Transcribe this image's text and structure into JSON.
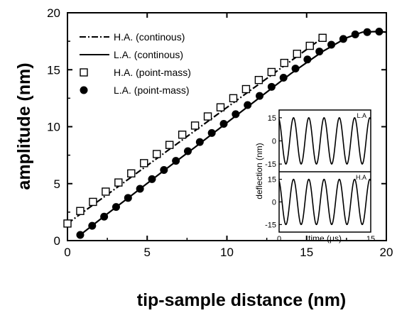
{
  "chart_data": {
    "type": "line",
    "xlabel": "tip-sample distance (nm)",
    "ylabel": "amplitude (nm)",
    "xlim": [
      0,
      20
    ],
    "ylim": [
      0,
      20
    ],
    "xticks": [
      "0",
      "5",
      "10",
      "15",
      "20"
    ],
    "yticks": [
      "0",
      "5",
      "10",
      "15",
      "20"
    ],
    "grid": false,
    "legend_position": "top-left",
    "series": [
      {
        "name": "H.A. (continous)",
        "style": "dash-dot line",
        "x": [
          0,
          16
        ],
        "y": [
          1.5,
          17.8
        ]
      },
      {
        "name": "L.A. (continous)",
        "style": "solid line",
        "x": [
          0.8,
          2.5,
          4,
          6,
          8,
          10,
          12,
          14,
          16,
          17.5,
          18.5,
          19.3,
          20
        ],
        "y": [
          0.5,
          2.35,
          3.95,
          6.1,
          8.2,
          10.35,
          12.5,
          14.65,
          16.6,
          17.8,
          18.3,
          18.35,
          18.3
        ]
      },
      {
        "name": "H.A. (point-mass)",
        "marker": "open-square",
        "x": [
          0,
          0.8,
          1.6,
          2.4,
          3.2,
          4.0,
          4.8,
          5.6,
          6.4,
          7.2,
          8.0,
          8.8,
          9.6,
          10.4,
          11.2,
          12.0,
          12.8,
          13.6,
          14.4,
          15.2,
          16.0
        ],
        "y": [
          1.5,
          2.6,
          3.4,
          4.3,
          5.1,
          5.9,
          6.8,
          7.6,
          8.4,
          9.3,
          10.1,
          10.9,
          11.7,
          12.5,
          13.3,
          14.1,
          14.8,
          15.6,
          16.4,
          17.1,
          17.8
        ]
      },
      {
        "name": "L.A. (point-mass)",
        "marker": "filled-circle",
        "x": [
          0.8,
          1.55,
          2.3,
          3.05,
          3.8,
          4.55,
          5.3,
          6.05,
          6.8,
          7.55,
          8.3,
          9.05,
          9.8,
          10.55,
          11.3,
          12.05,
          12.8,
          13.55,
          14.3,
          15.05,
          15.8,
          16.55,
          17.3,
          18.05,
          18.8,
          19.55
        ],
        "y": [
          0.5,
          1.3,
          2.1,
          2.95,
          3.75,
          4.55,
          5.4,
          6.2,
          7.0,
          7.85,
          8.65,
          9.45,
          10.25,
          11.1,
          11.9,
          12.7,
          13.5,
          14.3,
          15.1,
          15.9,
          16.6,
          17.2,
          17.7,
          18.1,
          18.3,
          18.35
        ]
      }
    ],
    "inset": {
      "xlabel": "time (μs)",
      "ylabel": "deflection (nm)",
      "xlim": [
        0,
        15
      ],
      "ylim": [
        -20,
        20
      ],
      "xticks": [
        "0",
        "15"
      ],
      "yticks": [
        "15",
        "0",
        "-15"
      ],
      "panels": [
        {
          "label": "L.A",
          "amplitude": 15,
          "cycles": 6
        },
        {
          "label": "H.A",
          "amplitude": 15,
          "cycles": 6
        }
      ]
    }
  }
}
